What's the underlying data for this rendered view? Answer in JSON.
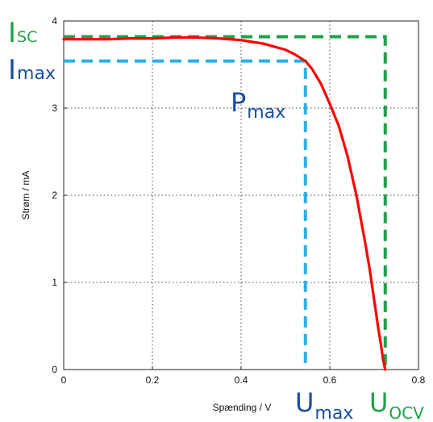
{
  "chart_data": {
    "type": "line",
    "xlabel": "Spænding / V",
    "ylabel": "Strøm / mA",
    "xlim": [
      0,
      0.8
    ],
    "ylim": [
      0,
      4
    ],
    "x_ticks": [
      "0",
      "0.2",
      "0.4",
      "0.6",
      "0.8"
    ],
    "y_ticks": [
      "0",
      "1",
      "2",
      "3",
      "4"
    ],
    "grid": true,
    "series": [
      {
        "color": "#ff0000",
        "x": [
          0,
          0.05,
          0.1,
          0.15,
          0.2,
          0.25,
          0.3,
          0.35,
          0.4,
          0.45,
          0.5,
          0.52,
          0.545,
          0.56,
          0.58,
          0.6,
          0.62,
          0.64,
          0.66,
          0.68,
          0.69,
          0.7,
          0.71,
          0.715,
          0.72,
          0.725
        ],
        "y": [
          3.79,
          3.79,
          3.79,
          3.8,
          3.8,
          3.81,
          3.81,
          3.8,
          3.78,
          3.74,
          3.67,
          3.62,
          3.54,
          3.45,
          3.28,
          3.05,
          2.8,
          2.45,
          2.0,
          1.45,
          1.15,
          0.8,
          0.45,
          0.3,
          0.12,
          0.0
        ]
      }
    ],
    "annotations": {
      "isc": {
        "main": "I",
        "sub": "SC",
        "color": "#1fa14a",
        "value": 3.82
      },
      "imax": {
        "main": "I",
        "sub": "max",
        "color": "#1a4fa3",
        "value": 3.54
      },
      "pmax": {
        "main": "P",
        "sub": "max",
        "color": "#1a4fa3"
      },
      "umax": {
        "main": "U",
        "sub": "max",
        "color": "#1a4fa3",
        "value": 0.545
      },
      "uocv": {
        "main": "U",
        "sub": "OCV",
        "color": "#1fa14a",
        "value": 0.725
      }
    },
    "guide_colors": {
      "max": "#2ab0e8",
      "limit": "#1fa14a"
    }
  }
}
